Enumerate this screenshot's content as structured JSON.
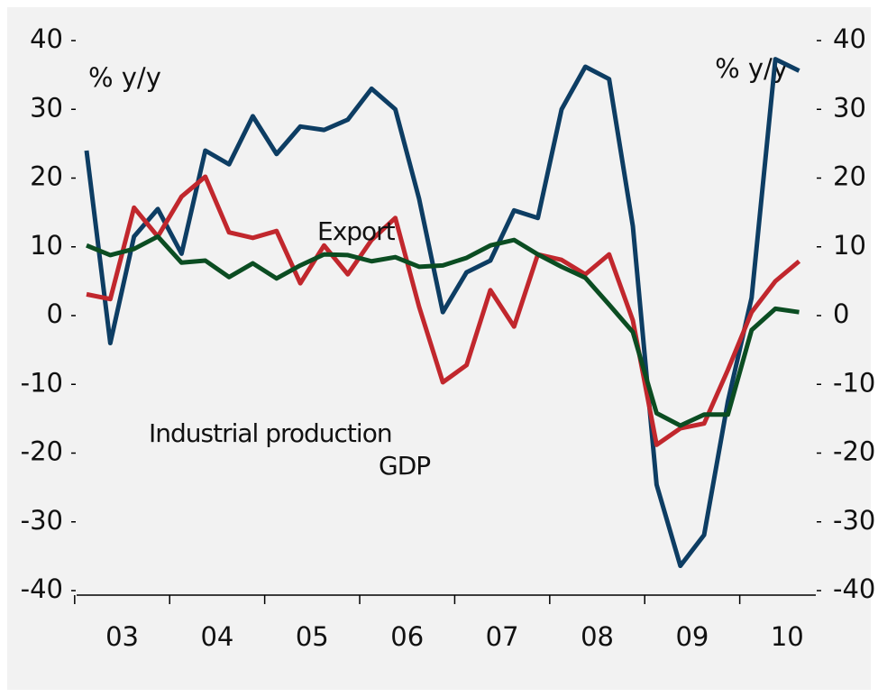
{
  "chart_data": {
    "type": "line",
    "categories": [
      null,
      "03",
      null,
      null,
      null,
      "04",
      null,
      null,
      null,
      "05",
      null,
      null,
      null,
      "06",
      null,
      null,
      null,
      "07",
      null,
      null,
      null,
      "08",
      null,
      null,
      null,
      "09",
      null,
      null,
      null,
      "10",
      null
    ],
    "series": [
      {
        "name": "Industrial production",
        "color": "#0d3d63",
        "values": [
          24,
          -4,
          11.5,
          15.5,
          9,
          24,
          22,
          29,
          23.5,
          27.5,
          27,
          28.5,
          33,
          30,
          17,
          0.5,
          6.3,
          8,
          15.3,
          14.2,
          30,
          36.2,
          34.4,
          13,
          -24.6,
          -36.4,
          -31.9,
          -12.5,
          2.6,
          37.3,
          35.6
        ]
      },
      {
        "name": "Export",
        "color": "#c1272d",
        "values": [
          3.1,
          2.4,
          15.7,
          11.5,
          17.3,
          20.2,
          12.1,
          11.3,
          12.3,
          4.7,
          10.2,
          6,
          11,
          14.2,
          1.3,
          -9.7,
          -7.2,
          3.7,
          -1.6,
          8.9,
          8.1,
          6,
          8.9,
          -0.7,
          -18.8,
          -16.4,
          -15.7,
          -7.9,
          0.5,
          5,
          7.9
        ]
      },
      {
        "name": "GDP",
        "color": "#0b4d22",
        "values": [
          10.2,
          8.8,
          9.7,
          11.5,
          7.7,
          8,
          5.6,
          7.6,
          5.4,
          7.3,
          8.9,
          8.8,
          7.9,
          8.5,
          7.1,
          7.3,
          8.4,
          10.2,
          11,
          8.9,
          7.1,
          5.5,
          1.6,
          -2.4,
          -14.2,
          -16,
          -14.4,
          -14.4,
          -2.1,
          1,
          0.5
        ]
      }
    ],
    "ylabel": "% y/y",
    "y2label": "% y/y",
    "ylim": [
      -40,
      40
    ],
    "yticks": [
      -40,
      -30,
      -20,
      -10,
      0,
      10,
      20,
      30,
      40
    ],
    "y2lim": [
      -40,
      40
    ],
    "y2ticks": [
      -40,
      -30,
      -20,
      -10,
      0,
      10,
      20,
      30,
      40
    ]
  }
}
